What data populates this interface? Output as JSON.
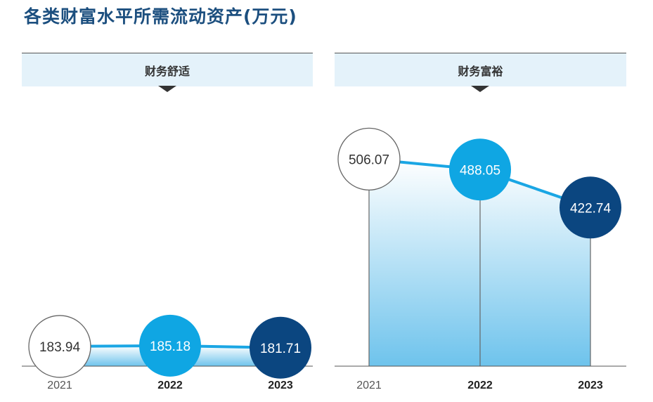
{
  "title": "各类财富水平所需流动资产(万元)",
  "colors": {
    "title": "#1c4f7f",
    "header_bg": "#e4f2fa",
    "line": "#1aa6e4",
    "bubble_2021_fill": "#ffffff",
    "bubble_2021_stroke": "#666666",
    "bubble_2022": "#0fa6e3",
    "bubble_2023": "#0b4680",
    "area_top": "#ffffff",
    "area_bottom": "#6ec3ec"
  },
  "chart_data": [
    {
      "type": "line",
      "title": "财务舒适",
      "categories": [
        "2021",
        "2022",
        "2023"
      ],
      "values": [
        183.94,
        185.18,
        181.71
      ],
      "labels": [
        "183.94",
        "185.18",
        "181.71"
      ],
      "bold_categories": [
        "2022",
        "2023"
      ],
      "ylabel": "万元"
    },
    {
      "type": "line",
      "title": "财务富裕",
      "categories": [
        "2021",
        "2022",
        "2023"
      ],
      "values": [
        506.07,
        488.05,
        422.74
      ],
      "labels": [
        "506.07",
        "488.05",
        "422.74"
      ],
      "bold_categories": [
        "2022",
        "2023"
      ],
      "ylabel": "万元"
    }
  ]
}
